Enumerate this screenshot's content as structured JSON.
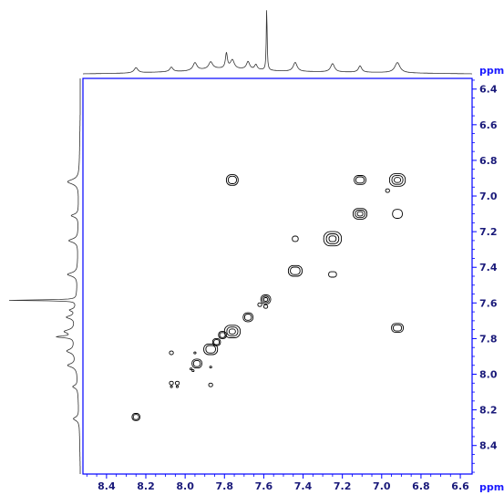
{
  "chart_data": {
    "type": "contour-2d-nmr",
    "title": "",
    "xlabel": "ppm",
    "ylabel": "ppm",
    "xlim": [
      8.52,
      6.54
    ],
    "ylim": [
      6.34,
      8.56
    ],
    "x_ticks": [
      "8.4",
      "8.2",
      "8.0",
      "7.8",
      "7.6",
      "7.4",
      "7.2",
      "7.0",
      "6.8",
      "6.6"
    ],
    "y_ticks": [
      "6.4",
      "6.6",
      "6.8",
      "7.0",
      "7.2",
      "7.4",
      "7.6",
      "7.8",
      "8.0",
      "8.2",
      "8.4"
    ],
    "grid": false,
    "frame_color": "#0000ff",
    "tick_color": "#0000ff",
    "contour_color": "#000000",
    "trace_color": "#333333",
    "cross_peaks": [
      {
        "x": 7.76,
        "y": 6.91,
        "w": 0.06,
        "h": 0.06,
        "levels": 2
      },
      {
        "x": 7.11,
        "y": 6.91,
        "w": 0.06,
        "h": 0.05,
        "levels": 2
      },
      {
        "x": 6.92,
        "y": 6.91,
        "w": 0.08,
        "h": 0.07,
        "levels": 3
      },
      {
        "x": 6.97,
        "y": 6.97,
        "w": 0.02,
        "h": 0.02,
        "levels": 1
      },
      {
        "x": 7.11,
        "y": 7.1,
        "w": 0.07,
        "h": 0.06,
        "levels": 3
      },
      {
        "x": 6.92,
        "y": 7.1,
        "w": 0.05,
        "h": 0.05,
        "levels": 1
      },
      {
        "x": 7.44,
        "y": 7.24,
        "w": 0.03,
        "h": 0.03,
        "levels": 1
      },
      {
        "x": 7.25,
        "y": 7.24,
        "w": 0.09,
        "h": 0.08,
        "levels": 3
      },
      {
        "x": 7.44,
        "y": 7.42,
        "w": 0.07,
        "h": 0.06,
        "levels": 2
      },
      {
        "x": 7.25,
        "y": 7.44,
        "w": 0.04,
        "h": 0.03,
        "levels": 1
      },
      {
        "x": 7.59,
        "y": 7.58,
        "w": 0.05,
        "h": 0.05,
        "levels": 3
      },
      {
        "x": 7.62,
        "y": 7.61,
        "w": 0.02,
        "h": 0.02,
        "levels": 1
      },
      {
        "x": 7.59,
        "y": 7.62,
        "w": 0.02,
        "h": 0.02,
        "levels": 1
      },
      {
        "x": 7.68,
        "y": 7.68,
        "w": 0.05,
        "h": 0.05,
        "levels": 2
      },
      {
        "x": 7.76,
        "y": 7.76,
        "w": 0.08,
        "h": 0.07,
        "levels": 3
      },
      {
        "x": 7.81,
        "y": 7.78,
        "w": 0.04,
        "h": 0.04,
        "levels": 2
      },
      {
        "x": 7.84,
        "y": 7.82,
        "w": 0.04,
        "h": 0.04,
        "levels": 2
      },
      {
        "x": 7.87,
        "y": 7.86,
        "w": 0.07,
        "h": 0.06,
        "levels": 2
      },
      {
        "x": 7.94,
        "y": 7.94,
        "w": 0.05,
        "h": 0.05,
        "levels": 2
      },
      {
        "x": 8.07,
        "y": 7.88,
        "w": 0.02,
        "h": 0.02,
        "levels": 1
      },
      {
        "x": 7.95,
        "y": 7.88,
        "w": 0.01,
        "h": 0.01,
        "levels": 1
      },
      {
        "x": 7.96,
        "y": 7.98,
        "w": 0.01,
        "h": 0.01,
        "levels": 1
      },
      {
        "x": 7.97,
        "y": 7.97,
        "w": 0.01,
        "h": 0.01,
        "levels": 1
      },
      {
        "x": 8.07,
        "y": 8.05,
        "w": 0.02,
        "h": 0.02,
        "levels": 1
      },
      {
        "x": 8.04,
        "y": 8.05,
        "w": 0.02,
        "h": 0.02,
        "levels": 1
      },
      {
        "x": 8.07,
        "y": 8.07,
        "w": 0.01,
        "h": 0.01,
        "levels": 1
      },
      {
        "x": 8.04,
        "y": 8.07,
        "w": 0.01,
        "h": 0.01,
        "levels": 1
      },
      {
        "x": 7.87,
        "y": 8.06,
        "w": 0.02,
        "h": 0.02,
        "levels": 1
      },
      {
        "x": 7.87,
        "y": 7.96,
        "w": 0.01,
        "h": 0.01,
        "levels": 1
      },
      {
        "x": 8.25,
        "y": 8.24,
        "w": 0.04,
        "h": 0.04,
        "levels": 2
      },
      {
        "x": 6.92,
        "y": 7.74,
        "w": 0.06,
        "h": 0.05,
        "levels": 2
      }
    ],
    "projection_peaks": [
      {
        "ppm": 8.25,
        "height": 0.08,
        "width": 0.012
      },
      {
        "ppm": 8.07,
        "height": 0.07,
        "width": 0.01
      },
      {
        "ppm": 7.95,
        "height": 0.12,
        "width": 0.012
      },
      {
        "ppm": 7.87,
        "height": 0.11,
        "width": 0.012
      },
      {
        "ppm": 7.79,
        "height": 0.24,
        "width": 0.006
      },
      {
        "ppm": 7.76,
        "height": 0.14,
        "width": 0.012
      },
      {
        "ppm": 7.68,
        "height": 0.12,
        "width": 0.01
      },
      {
        "ppm": 7.64,
        "height": 0.08,
        "width": 0.008
      },
      {
        "ppm": 7.585,
        "height": 1.0,
        "width": 0.0025
      },
      {
        "ppm": 7.44,
        "height": 0.14,
        "width": 0.012
      },
      {
        "ppm": 7.25,
        "height": 0.13,
        "width": 0.012
      },
      {
        "ppm": 7.11,
        "height": 0.1,
        "width": 0.01
      },
      {
        "ppm": 6.92,
        "height": 0.16,
        "width": 0.016
      }
    ],
    "projection_baseline": [
      {
        "ppm": 8.52,
        "height": 0.0
      },
      {
        "ppm": 8.3,
        "height": 0.01
      },
      {
        "ppm": 8.0,
        "height": 0.04
      },
      {
        "ppm": 7.85,
        "height": 0.08
      },
      {
        "ppm": 7.7,
        "height": 0.07
      },
      {
        "ppm": 7.5,
        "height": 0.04
      },
      {
        "ppm": 7.3,
        "height": 0.03
      },
      {
        "ppm": 7.0,
        "height": 0.02
      },
      {
        "ppm": 6.8,
        "height": 0.01
      },
      {
        "ppm": 6.54,
        "height": 0.0
      }
    ]
  }
}
